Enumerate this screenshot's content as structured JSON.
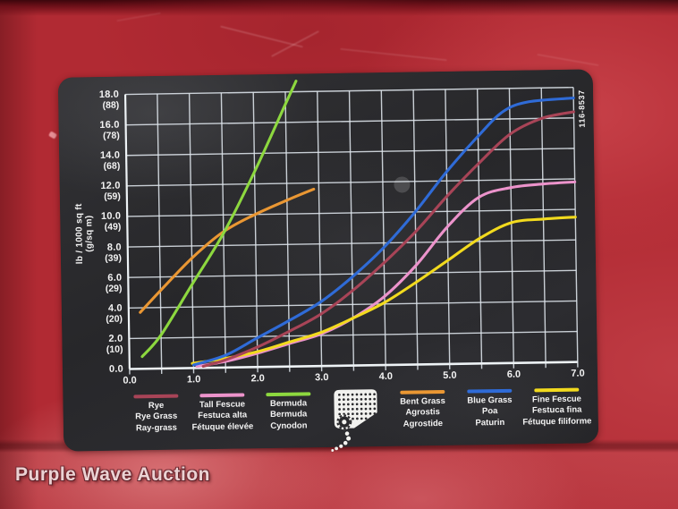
{
  "watermark": {
    "text": "Purple Wave Auction"
  },
  "label": {
    "part_number": "116-8537",
    "ylabel_line1": "lb / 1000 sq ft",
    "ylabel_line2": "(g/sq m)"
  },
  "colors": {
    "panel_red": "#b12a33",
    "label_black": "#2a2a2d",
    "grid_white": "#dde4ea",
    "text_white": "#f3f3f3"
  },
  "chart_data": {
    "type": "line",
    "title": "",
    "xlabel": "",
    "ylabel": "lb / 1000 sq ft (g/sq m)",
    "xlim": [
      0,
      7
    ],
    "ylim": [
      0,
      18
    ],
    "x_grid_step": 0.5,
    "y_grid_step": 2.0,
    "grid": "on",
    "legend_position": "bottom",
    "x_ticks": [
      "0.0",
      "1.0",
      "2.0",
      "3.0",
      "4.0",
      "5.0",
      "6.0",
      "7.0"
    ],
    "y_ticks": [
      {
        "lb": "18.0",
        "gsqm": "(88)"
      },
      {
        "lb": "16.0",
        "gsqm": "(78)"
      },
      {
        "lb": "14.0",
        "gsqm": "(68)"
      },
      {
        "lb": "12.0",
        "gsqm": "(59)"
      },
      {
        "lb": "10.0",
        "gsqm": "(49)"
      },
      {
        "lb": "8.0",
        "gsqm": "(39)"
      },
      {
        "lb": "6.0",
        "gsqm": "(29)"
      },
      {
        "lb": "4.0",
        "gsqm": "(20)"
      },
      {
        "lb": "2.0",
        "gsqm": "(10)"
      },
      {
        "lb": "0.0",
        "gsqm": ""
      }
    ],
    "series": [
      {
        "id": "rye",
        "legend": [
          "Rye",
          "Rye Grass",
          "Ray-grass"
        ],
        "color": "#a84457",
        "points": [
          [
            1.15,
            0.1
          ],
          [
            1.5,
            0.5
          ],
          [
            2,
            1.3
          ],
          [
            2.5,
            2.3
          ],
          [
            3,
            3.4
          ],
          [
            3.5,
            4.9
          ],
          [
            4,
            6.7
          ],
          [
            4.5,
            8.7
          ],
          [
            5,
            11.0
          ],
          [
            5.5,
            13.1
          ],
          [
            6,
            15.0
          ],
          [
            6.5,
            16.0
          ],
          [
            7,
            16.4
          ]
        ]
      },
      {
        "id": "tall_fescue",
        "legend": [
          "Tall Fescue",
          "Festuca alta",
          "Fétuque élevée"
        ],
        "color": "#ec93cb",
        "points": [
          [
            1.05,
            0.1
          ],
          [
            1.5,
            0.4
          ],
          [
            2,
            0.9
          ],
          [
            2.5,
            1.5
          ],
          [
            3,
            2.1
          ],
          [
            3.5,
            3.1
          ],
          [
            4,
            4.5
          ],
          [
            4.5,
            6.5
          ],
          [
            5,
            9.0
          ],
          [
            5.5,
            10.9
          ],
          [
            6,
            11.5
          ],
          [
            6.5,
            11.7
          ],
          [
            7,
            11.8
          ]
        ]
      },
      {
        "id": "bermuda",
        "legend": [
          "Bermuda",
          "Bermuda",
          "Cynodon"
        ],
        "color": "#8dd83f",
        "points": [
          [
            0.2,
            0.8
          ],
          [
            0.5,
            2.2
          ],
          [
            1,
            5.5
          ],
          [
            1.5,
            8.8
          ],
          [
            2,
            12.8
          ],
          [
            2.5,
            17.2
          ],
          [
            2.67,
            18.7
          ]
        ]
      },
      {
        "id": "bent_grass",
        "legend": [
          "Bent Grass",
          "Agrostis",
          "Agrostide"
        ],
        "color": "#ea9733",
        "points": [
          [
            0.18,
            3.7
          ],
          [
            0.5,
            5.1
          ],
          [
            1,
            7.2
          ],
          [
            1.5,
            8.9
          ],
          [
            2,
            10.0
          ],
          [
            2.5,
            10.9
          ],
          [
            2.92,
            11.6
          ]
        ]
      },
      {
        "id": "blue_grass",
        "legend": [
          "Blue Grass",
          "Poa",
          "Paturin"
        ],
        "color": "#2f6bd7",
        "points": [
          [
            1,
            0.2
          ],
          [
            1.5,
            0.8
          ],
          [
            2,
            1.9
          ],
          [
            2.5,
            3.0
          ],
          [
            3,
            4.2
          ],
          [
            3.5,
            5.8
          ],
          [
            4,
            7.7
          ],
          [
            4.5,
            10.0
          ],
          [
            5,
            12.6
          ],
          [
            5.5,
            14.9
          ],
          [
            5.9,
            16.5
          ],
          [
            6.3,
            17.1
          ],
          [
            7,
            17.3
          ]
        ]
      },
      {
        "id": "fine_fescue",
        "legend": [
          "Fine Fescue",
          "Festuca fina",
          "Fétuque filiforme"
        ],
        "color": "#f2da1e",
        "points": [
          [
            0.98,
            0.3
          ],
          [
            1.5,
            0.6
          ],
          [
            2,
            1.0
          ],
          [
            2.5,
            1.6
          ],
          [
            3,
            2.2
          ],
          [
            3.5,
            3.1
          ],
          [
            4,
            4.1
          ],
          [
            4.5,
            5.4
          ],
          [
            5,
            6.8
          ],
          [
            5.5,
            8.2
          ],
          [
            6,
            9.2
          ],
          [
            6.5,
            9.4
          ],
          [
            7,
            9.5
          ]
        ]
      }
    ]
  }
}
